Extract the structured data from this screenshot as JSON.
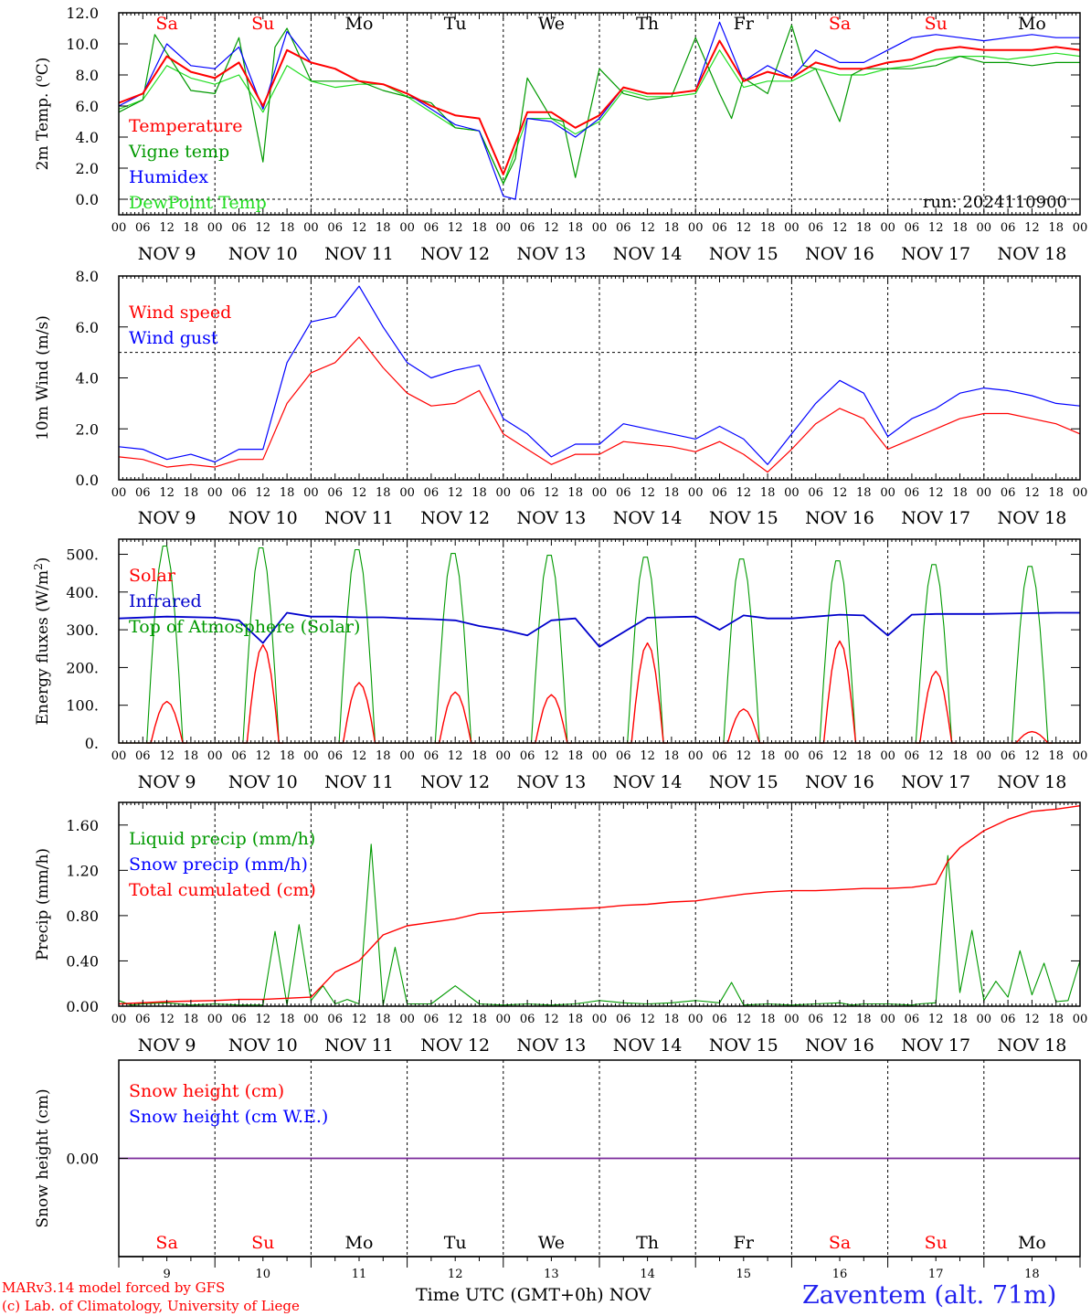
{
  "day_labels": [
    "NOV  9",
    "NOV 10",
    "NOV 11",
    "NOV 12",
    "NOV 13",
    "NOV 14",
    "NOV 15",
    "NOV 16",
    "NOV 17",
    "NOV 18"
  ],
  "weekdays": [
    "Sa",
    "Su",
    "Mo",
    "Tu",
    "We",
    "Th",
    "Fr",
    "Sa",
    "Su",
    "Mo"
  ],
  "weekday_colors": [
    "#ff0000",
    "#ff0000",
    "#000000",
    "#000000",
    "#000000",
    "#000000",
    "#000000",
    "#ff0000",
    "#ff0000",
    "#000000"
  ],
  "hour_ticks": [
    "00",
    "06",
    "12",
    "18"
  ],
  "bottom_day_numbers": [
    "9",
    "10",
    "11",
    "12",
    "13",
    "14",
    "15",
    "16",
    "17",
    "18"
  ],
  "footer": {
    "model_line": "MARv3.14 model forced by GFS",
    "credit_line": "(c) Lab. of Climatology, University of Liege",
    "x_title": "Time UTC (GMT+0h)",
    "x_month": "NOV",
    "station": "Zaventem (alt. 71m)"
  },
  "chart_data": [
    {
      "type": "line",
      "ylabel": "2m Temp. (oC)",
      "ylim": [
        -1.0,
        12.0
      ],
      "yticks": [
        "0.0",
        "2.0",
        "4.0",
        "6.0",
        "8.0",
        "10.0",
        "12.0"
      ],
      "ytick_values": [
        0,
        2,
        4,
        6,
        8,
        10,
        12
      ],
      "reference_line": 0,
      "annotation": "run: 2024110900",
      "x_unit": "hours since NOV 9 00 UTC",
      "series": [
        {
          "name": "Temperature",
          "color": "#ff0000",
          "x": [
            0,
            6,
            12,
            18,
            24,
            30,
            36,
            42,
            48,
            54,
            60,
            66,
            72,
            78,
            84,
            90,
            96,
            102,
            108,
            114,
            120,
            126,
            132,
            138,
            144,
            150,
            156,
            162,
            168,
            174,
            180,
            186,
            192,
            198,
            204,
            210,
            216,
            222,
            228,
            234,
            240
          ],
          "values": [
            6.2,
            6.8,
            9.2,
            8.2,
            7.8,
            8.8,
            6.0,
            9.6,
            8.8,
            8.4,
            7.6,
            7.4,
            6.8,
            6.0,
            5.4,
            5.2,
            1.6,
            5.6,
            5.6,
            4.6,
            5.4,
            7.2,
            6.8,
            6.8,
            7.0,
            10.2,
            7.6,
            8.2,
            7.8,
            8.8,
            8.4,
            8.4,
            8.8,
            9.0,
            9.6,
            9.8,
            9.6,
            9.6,
            9.6,
            9.8,
            9.6
          ]
        },
        {
          "name": "Vigne temp",
          "color": "#009900",
          "x": [
            0,
            6,
            9,
            12,
            18,
            24,
            30,
            33,
            36,
            39,
            42,
            48,
            54,
            60,
            66,
            72,
            78,
            84,
            90,
            96,
            99,
            102,
            108,
            111,
            114,
            120,
            126,
            132,
            138,
            144,
            150,
            153,
            156,
            162,
            168,
            171,
            174,
            180,
            183,
            186,
            192,
            198,
            204,
            210,
            216,
            222,
            228,
            234,
            240
          ],
          "values": [
            5.6,
            6.4,
            10.6,
            9.4,
            7.0,
            6.8,
            10.4,
            6.4,
            2.4,
            9.8,
            11.0,
            7.6,
            7.6,
            7.6,
            7.0,
            6.6,
            6.2,
            4.6,
            4.4,
            1.0,
            2.6,
            7.8,
            5.2,
            5.0,
            1.4,
            8.4,
            6.8,
            6.4,
            6.6,
            10.4,
            6.8,
            5.2,
            7.8,
            6.8,
            11.2,
            8.6,
            8.4,
            5.0,
            8.0,
            8.4,
            8.4,
            8.4,
            8.6,
            9.2,
            8.8,
            8.8,
            8.6,
            8.8,
            8.8
          ]
        },
        {
          "name": "Humidex",
          "color": "#0000ff",
          "x": [
            0,
            6,
            12,
            18,
            24,
            30,
            36,
            42,
            48,
            54,
            60,
            66,
            72,
            78,
            84,
            90,
            96,
            99,
            102,
            108,
            114,
            120,
            126,
            132,
            138,
            144,
            150,
            156,
            162,
            168,
            174,
            180,
            186,
            192,
            198,
            204,
            210,
            216,
            222,
            228,
            234,
            240
          ],
          "values": [
            6.0,
            6.8,
            10.0,
            8.6,
            8.4,
            9.8,
            5.8,
            10.8,
            8.8,
            8.4,
            7.6,
            7.4,
            6.8,
            5.8,
            4.8,
            4.4,
            0.2,
            0.0,
            5.2,
            5.0,
            4.0,
            5.2,
            7.2,
            6.8,
            6.8,
            7.0,
            11.4,
            7.6,
            8.6,
            7.8,
            9.6,
            8.8,
            8.8,
            9.6,
            10.4,
            10.6,
            10.4,
            10.2,
            10.4,
            10.6,
            10.4,
            10.4
          ]
        },
        {
          "name": "DewPoint Temp",
          "color": "#22dd22",
          "x": [
            0,
            6,
            12,
            18,
            24,
            30,
            36,
            42,
            48,
            54,
            60,
            66,
            72,
            78,
            84,
            90,
            96,
            102,
            108,
            114,
            120,
            126,
            132,
            138,
            144,
            150,
            156,
            162,
            168,
            174,
            180,
            186,
            192,
            198,
            204,
            210,
            216,
            222,
            228,
            234,
            240
          ],
          "values": [
            5.8,
            6.4,
            8.6,
            7.8,
            7.4,
            8.0,
            5.6,
            8.6,
            7.6,
            7.2,
            7.4,
            7.4,
            6.6,
            5.6,
            4.6,
            4.4,
            1.0,
            5.2,
            5.2,
            4.2,
            5.0,
            7.0,
            6.6,
            6.6,
            6.8,
            9.6,
            7.2,
            7.6,
            7.6,
            8.4,
            8.0,
            8.0,
            8.4,
            8.6,
            9.0,
            9.2,
            9.2,
            9.0,
            9.2,
            9.4,
            9.2
          ]
        }
      ]
    },
    {
      "type": "line",
      "ylabel": "10m Wind (m/s)",
      "ylim": [
        0,
        8.0
      ],
      "yticks": [
        "0.0",
        "2.0",
        "4.0",
        "6.0",
        "8.0"
      ],
      "ytick_values": [
        0,
        2,
        4,
        6,
        8
      ],
      "reference_line": 5,
      "x_unit": "hours since NOV 9 00 UTC",
      "series": [
        {
          "name": "Wind speed",
          "color": "#ff0000",
          "x": [
            0,
            6,
            12,
            18,
            24,
            30,
            36,
            42,
            48,
            54,
            60,
            66,
            72,
            78,
            84,
            90,
            96,
            102,
            108,
            114,
            120,
            126,
            132,
            138,
            144,
            150,
            156,
            162,
            168,
            174,
            180,
            186,
            192,
            198,
            204,
            210,
            216,
            222,
            228,
            234,
            240
          ],
          "values": [
            0.9,
            0.8,
            0.5,
            0.6,
            0.5,
            0.8,
            0.8,
            3.0,
            4.2,
            4.6,
            5.6,
            4.4,
            3.4,
            2.9,
            3.0,
            3.5,
            1.8,
            1.2,
            0.6,
            1.0,
            1.0,
            1.5,
            1.4,
            1.3,
            1.1,
            1.5,
            1.0,
            0.3,
            1.2,
            2.2,
            2.8,
            2.4,
            1.2,
            1.6,
            2.0,
            2.4,
            2.6,
            2.6,
            2.4,
            2.2,
            1.8
          ]
        },
        {
          "name": "Wind gust",
          "color": "#0000ff",
          "x": [
            0,
            6,
            12,
            18,
            24,
            30,
            36,
            42,
            48,
            54,
            60,
            66,
            72,
            78,
            84,
            90,
            96,
            102,
            108,
            114,
            120,
            126,
            132,
            138,
            144,
            150,
            156,
            162,
            168,
            174,
            180,
            186,
            192,
            198,
            204,
            210,
            216,
            222,
            228,
            234,
            240
          ],
          "values": [
            1.3,
            1.2,
            0.8,
            1.0,
            0.7,
            1.2,
            1.2,
            4.6,
            6.2,
            6.4,
            7.6,
            6.0,
            4.6,
            4.0,
            4.3,
            4.5,
            2.4,
            1.8,
            0.9,
            1.4,
            1.4,
            2.2,
            2.0,
            1.8,
            1.6,
            2.1,
            1.6,
            0.6,
            1.8,
            3.0,
            3.9,
            3.4,
            1.7,
            2.4,
            2.8,
            3.4,
            3.6,
            3.5,
            3.3,
            3.0,
            2.9
          ]
        }
      ]
    },
    {
      "type": "line",
      "ylabel": "Energy fluxes (W/m2)",
      "ylim": [
        0,
        540
      ],
      "yticks": [
        "0.",
        "100.",
        "200.",
        "300.",
        "400.",
        "500."
      ],
      "ytick_values": [
        0,
        100,
        200,
        300,
        400,
        500
      ],
      "x_unit": "hours since NOV 9 00 UTC",
      "series": [
        {
          "name": "Solar",
          "color": "#ff0000",
          "peaks": [
            110,
            260,
            160,
            135,
            128,
            265,
            90,
            270,
            190,
            30
          ]
        },
        {
          "name": "Infrared",
          "color": "#0000cc",
          "x": [
            0,
            12,
            24,
            30,
            36,
            42,
            48,
            54,
            60,
            66,
            72,
            78,
            84,
            90,
            96,
            102,
            108,
            114,
            120,
            132,
            144,
            150,
            156,
            162,
            168,
            174,
            180,
            186,
            192,
            198,
            204,
            210,
            216,
            222,
            228,
            234,
            240
          ],
          "values": [
            330,
            335,
            332,
            325,
            265,
            345,
            335,
            335,
            333,
            333,
            330,
            328,
            325,
            310,
            300,
            285,
            325,
            330,
            255,
            332,
            335,
            300,
            338,
            330,
            330,
            335,
            340,
            338,
            285,
            340,
            342,
            342,
            342,
            343,
            344,
            345,
            345
          ]
        },
        {
          "name": "Top of Atmosphere (Solar)",
          "color": "#009900",
          "peaks": [
            530,
            525,
            520,
            510,
            505,
            500,
            495,
            490,
            480,
            475
          ]
        }
      ]
    },
    {
      "type": "line",
      "ylabel": "Precip (mm/h)",
      "ylim": [
        0,
        1.8
      ],
      "yticks": [
        "0.00",
        "0.40",
        "0.80",
        "1.20",
        "1.60"
      ],
      "ytick_values": [
        0,
        0.4,
        0.8,
        1.2,
        1.6
      ],
      "x_unit": "hours since NOV 9 00 UTC",
      "series": [
        {
          "name": "Liquid precip (mm/h)",
          "color": "#009900",
          "x": [
            0,
            3,
            6,
            12,
            18,
            24,
            30,
            36,
            39,
            42,
            45,
            48,
            51,
            54,
            57,
            60,
            63,
            66,
            69,
            72,
            78,
            84,
            90,
            96,
            102,
            108,
            114,
            120,
            126,
            132,
            138,
            144,
            150,
            153,
            156,
            162,
            168,
            174,
            180,
            183,
            186,
            192,
            198,
            200,
            204,
            207,
            210,
            213,
            216,
            219,
            222,
            225,
            228,
            231,
            234,
            237,
            240
          ],
          "values": [
            0.05,
            0.01,
            0.02,
            0.03,
            0.01,
            0.02,
            0.01,
            0.01,
            0.66,
            0.01,
            0.72,
            0.05,
            0.18,
            0.02,
            0.06,
            0.02,
            1.43,
            0.01,
            0.52,
            0.02,
            0.02,
            0.18,
            0.02,
            0.01,
            0.02,
            0.01,
            0.02,
            0.05,
            0.03,
            0.02,
            0.03,
            0.05,
            0.03,
            0.21,
            0.01,
            0.02,
            0.01,
            0.02,
            0.03,
            0.01,
            0.02,
            0.02,
            0.01,
            0.02,
            0.03,
            1.33,
            0.12,
            0.67,
            0.05,
            0.22,
            0.08,
            0.49,
            0.1,
            0.38,
            0.04,
            0.05,
            0.4
          ]
        },
        {
          "name": "Snow precip (mm/h)",
          "color": "#0000ff",
          "x": [
            0,
            240
          ],
          "values": [
            0,
            0
          ]
        },
        {
          "name": "Total cumulated (cm)",
          "color": "#ff0000",
          "x": [
            0,
            12,
            24,
            30,
            36,
            42,
            48,
            54,
            60,
            66,
            72,
            78,
            84,
            90,
            96,
            102,
            108,
            114,
            120,
            126,
            132,
            138,
            144,
            150,
            156,
            162,
            168,
            174,
            180,
            186,
            192,
            198,
            204,
            207,
            210,
            216,
            222,
            228,
            234,
            240
          ],
          "values": [
            0.02,
            0.04,
            0.05,
            0.06,
            0.06,
            0.07,
            0.08,
            0.3,
            0.4,
            0.63,
            0.71,
            0.74,
            0.77,
            0.82,
            0.83,
            0.84,
            0.85,
            0.86,
            0.87,
            0.89,
            0.9,
            0.92,
            0.93,
            0.96,
            0.99,
            1.01,
            1.02,
            1.02,
            1.03,
            1.04,
            1.04,
            1.05,
            1.08,
            1.28,
            1.4,
            1.55,
            1.65,
            1.72,
            1.74,
            1.77
          ]
        }
      ]
    },
    {
      "type": "line",
      "ylabel": "Snow height (cm)",
      "ylim": [
        -1.0,
        1.0
      ],
      "yticks": [
        "0.00"
      ],
      "ytick_values": [
        0
      ],
      "x_unit": "hours since NOV 9 00 UTC",
      "series": [
        {
          "name": "Snow height (cm)",
          "color": "#ff0000",
          "x": [
            0,
            240
          ],
          "values": [
            0,
            0
          ]
        },
        {
          "name": "Snow height (cm W.E.)",
          "color": "#0000ff",
          "x": [
            0,
            240
          ],
          "values": [
            0,
            0
          ]
        }
      ]
    }
  ]
}
